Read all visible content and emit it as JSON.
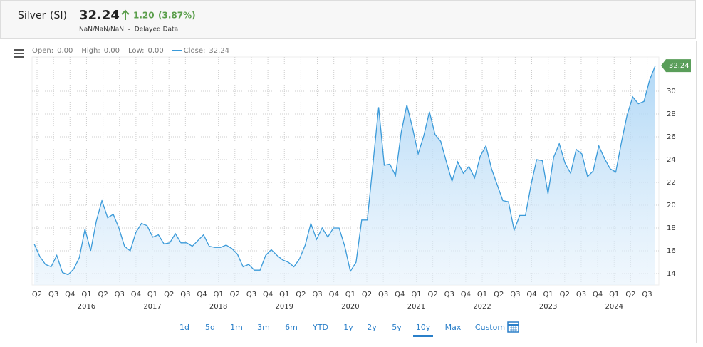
{
  "header": {
    "name": "Silver",
    "symbol": "(SI)",
    "price": "32.24",
    "change": "1.20",
    "change_pct": "(3.87%)",
    "subline": "NaN/NaN/NaN  -  Delayed Data"
  },
  "legend": [
    {
      "label": "Open:",
      "value": "0.00"
    },
    {
      "label": "High:",
      "value": "0.00"
    },
    {
      "label": "Low:",
      "value": "0.00"
    },
    {
      "label": "Close:",
      "value": "32.24"
    }
  ],
  "chart_data": {
    "type": "area",
    "series": [
      {
        "color": "#3a9ad9",
        "values": [
          16.6,
          15.5,
          14.8,
          14.6,
          15.6,
          14.1,
          13.9,
          14.4,
          15.4,
          17.9,
          16.0,
          18.6,
          20.4,
          18.9,
          19.2,
          18.0,
          16.4,
          16.0,
          17.6,
          18.4,
          18.2,
          17.2,
          17.4,
          16.6,
          16.7,
          17.5,
          16.7,
          16.7,
          16.4,
          16.9,
          17.4,
          16.4,
          16.3,
          16.3,
          16.5,
          16.2,
          15.7,
          14.6,
          14.8,
          14.3,
          14.3,
          15.6,
          16.1,
          15.6,
          15.2,
          15.0,
          14.6,
          15.3,
          16.5,
          18.4,
          17.0,
          18.0,
          17.2,
          18.0,
          18.0,
          16.4,
          14.2,
          15.0,
          18.7,
          18.7,
          23.6,
          28.6,
          23.5,
          23.6,
          22.6,
          26.4,
          28.8,
          26.8,
          24.5,
          26.1,
          28.2,
          26.2,
          25.6,
          23.8,
          22.1,
          23.8,
          22.8,
          23.4,
          22.4,
          24.3,
          25.2,
          23.2,
          21.8,
          20.4,
          20.3,
          17.8,
          19.1,
          19.1,
          21.8,
          24.0,
          23.9,
          21.0,
          24.2,
          25.4,
          23.7,
          22.8,
          24.9,
          24.5,
          22.5,
          23.0,
          25.2,
          24.1,
          23.2,
          22.9,
          25.5,
          27.9,
          29.5,
          28.9,
          29.1,
          31.0,
          32.24
        ]
      }
    ],
    "last_label": "32.24",
    "quarters": [
      "Q2",
      "Q3",
      "Q4",
      "Q1",
      "Q2",
      "Q3",
      "Q4",
      "Q1",
      "Q2",
      "Q3",
      "Q4",
      "Q1",
      "Q2",
      "Q3",
      "Q4",
      "Q1",
      "Q2",
      "Q3",
      "Q4",
      "Q1",
      "Q2",
      "Q3",
      "Q4",
      "Q1",
      "Q2",
      "Q3",
      "Q4",
      "Q1",
      "Q2",
      "Q3",
      "Q4",
      "Q1",
      "Q2",
      "Q3",
      "Q4",
      "Q1",
      "Q2",
      "Q3"
    ],
    "years": [
      null,
      null,
      null,
      "2016",
      null,
      null,
      null,
      "2017",
      null,
      null,
      null,
      "2018",
      null,
      null,
      null,
      "2019",
      null,
      null,
      null,
      "2020",
      null,
      null,
      null,
      "2021",
      null,
      null,
      null,
      "2022",
      null,
      null,
      null,
      "2023",
      null,
      null,
      null,
      "2024",
      null,
      null
    ],
    "ylim": [
      13,
      33
    ],
    "yticks": [
      14,
      16,
      18,
      20,
      22,
      24,
      26,
      28,
      30
    ],
    "grid": true
  },
  "range_buttons": [
    "1d",
    "5d",
    "1m",
    "3m",
    "6m",
    "YTD",
    "1y",
    "2y",
    "5y",
    "10y",
    "Max",
    "Custom"
  ],
  "selected_range": 9
}
